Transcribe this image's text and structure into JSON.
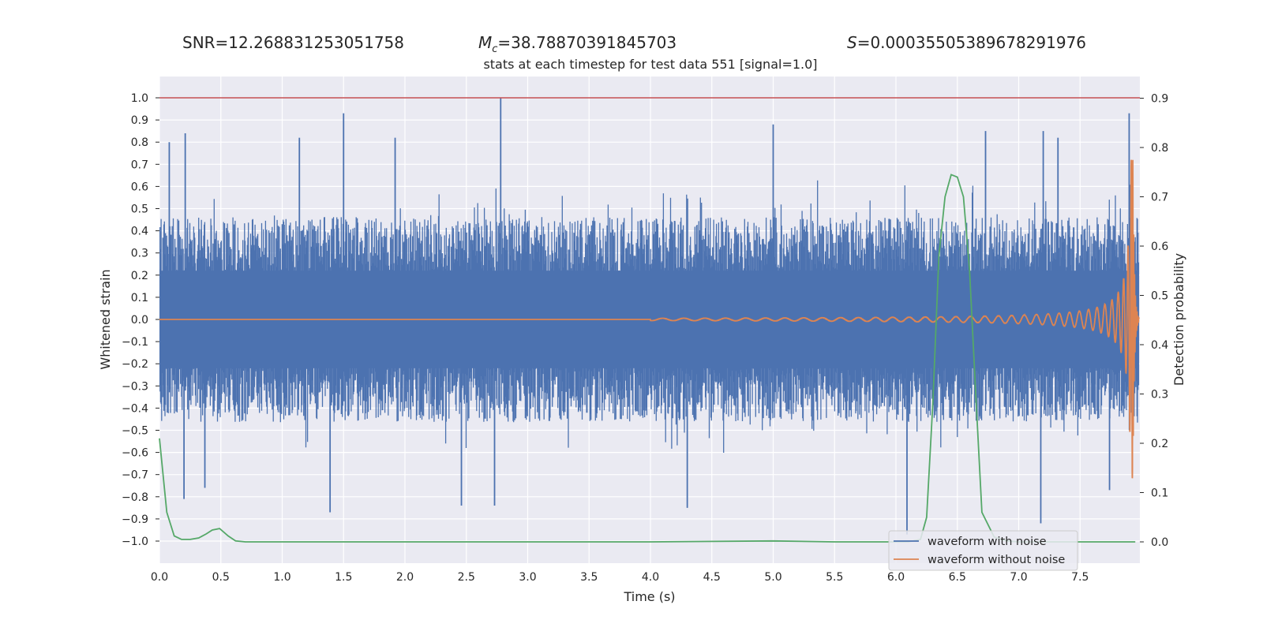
{
  "chart_data": {
    "type": "line",
    "header": {
      "snr": "SNR=12.268831253051758",
      "mc_symbol": "M",
      "mc_subscript": "c",
      "mc_value": "=38.78870391845703",
      "s_symbol": "S",
      "s_value": "=0.00035505389678291976"
    },
    "title": "stats at each timestep for test data 551 [signal=1.0]",
    "xlabel": "Time (s)",
    "ylabel": "Whitened strain",
    "y2label": "Detection probability",
    "xlim": [
      0.0,
      8.0
    ],
    "ylim": [
      -1.1,
      1.1
    ],
    "y2lim": [
      -0.04,
      0.94
    ],
    "xticks": [
      "0.0",
      "0.5",
      "1.0",
      "1.5",
      "2.0",
      "2.5",
      "3.0",
      "3.5",
      "4.0",
      "4.5",
      "5.0",
      "5.5",
      "6.0",
      "6.5",
      "7.0",
      "7.5"
    ],
    "yticks": [
      "1.0",
      "0.9",
      "0.8",
      "0.7",
      "0.6",
      "0.5",
      "0.4",
      "0.3",
      "0.2",
      "0.1",
      "0.0",
      "−0.1",
      "−0.2",
      "−0.3",
      "−0.4",
      "−0.5",
      "−0.6",
      "−0.7",
      "−0.8",
      "−0.9",
      "−1.0"
    ],
    "y2ticks": [
      "0.9",
      "0.8",
      "0.7",
      "0.6",
      "0.5",
      "0.4",
      "0.3",
      "0.2",
      "0.1",
      "0.0"
    ],
    "grid": true,
    "legend_position": "lower-right",
    "threshold": {
      "y": 1.0,
      "color": "#c44e52"
    },
    "series": [
      {
        "name": "waveform with noise",
        "color": "#4c72b0",
        "band": {
          "typical_abs": 0.42,
          "x_range": [
            0.0,
            7.98
          ]
        },
        "peaks": [
          [
            0.08,
            0.8
          ],
          [
            0.21,
            0.84
          ],
          [
            0.2,
            -0.81
          ],
          [
            0.37,
            -0.76
          ],
          [
            1.14,
            0.82
          ],
          [
            1.39,
            -0.87
          ],
          [
            1.5,
            0.93
          ],
          [
            1.92,
            0.82
          ],
          [
            2.46,
            -0.84
          ],
          [
            2.78,
            1.0
          ],
          [
            2.73,
            -0.84
          ],
          [
            4.3,
            -0.85
          ],
          [
            5.0,
            0.88
          ],
          [
            6.09,
            -0.97
          ],
          [
            6.73,
            0.85
          ],
          [
            7.2,
            0.85
          ],
          [
            7.32,
            0.82
          ],
          [
            7.18,
            -0.92
          ],
          [
            7.9,
            0.93
          ],
          [
            7.74,
            -0.77
          ]
        ]
      },
      {
        "name": "waveform without noise",
        "color": "#dd8452",
        "chirp": {
          "start_time": 4.0,
          "merger_time": 7.93,
          "peak_amplitude": 0.72
        }
      },
      {
        "name": "",
        "color": "#55a868",
        "axis": "right",
        "x": [
          0.0,
          0.06,
          0.12,
          0.18,
          0.25,
          0.32,
          0.38,
          0.43,
          0.49,
          0.56,
          0.62,
          0.7,
          1.0,
          2.0,
          3.0,
          4.0,
          5.0,
          5.5,
          6.0,
          6.1,
          6.2,
          6.25,
          6.3,
          6.35,
          6.4,
          6.45,
          6.5,
          6.55,
          6.6,
          6.65,
          6.7,
          6.8,
          6.9,
          7.0,
          7.5,
          7.95
        ],
        "values": [
          0.21,
          0.06,
          0.012,
          0.005,
          0.005,
          0.008,
          0.016,
          0.024,
          0.027,
          0.012,
          0.002,
          0.0,
          0.0,
          0.0,
          0.0,
          0.0,
          0.002,
          0.0,
          0.0,
          0.0,
          0.005,
          0.05,
          0.28,
          0.58,
          0.7,
          0.745,
          0.74,
          0.7,
          0.55,
          0.3,
          0.06,
          0.01,
          0.002,
          0.0,
          0.0,
          0.0
        ]
      }
    ]
  }
}
